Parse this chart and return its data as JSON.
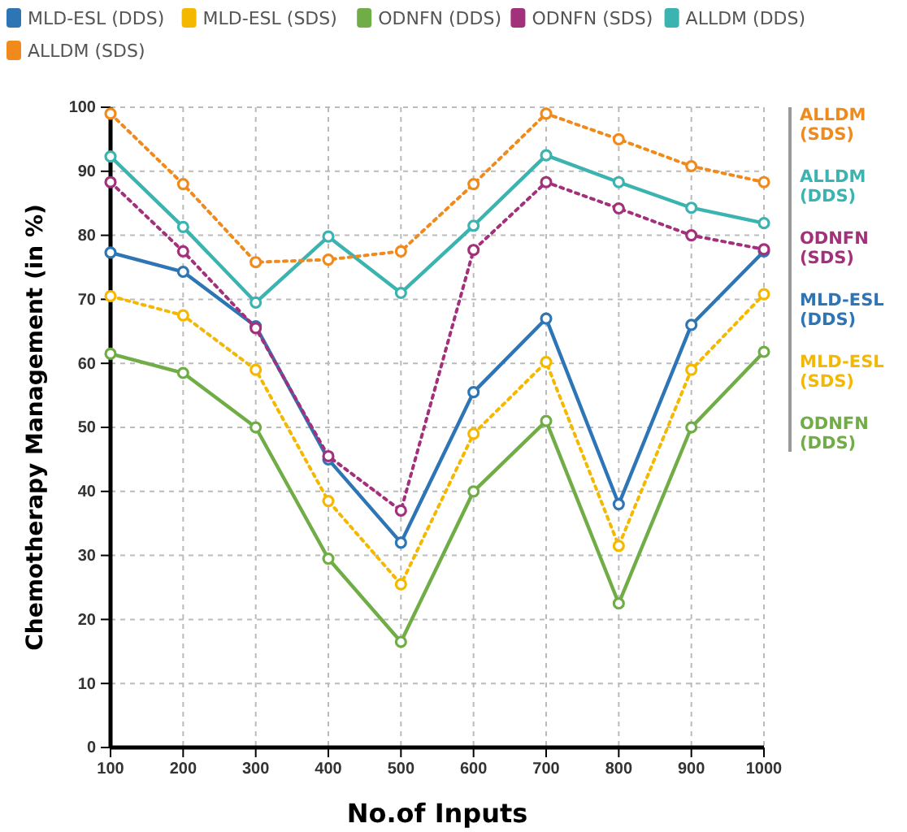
{
  "chart_data": {
    "type": "line",
    "xlabel": "No.of Inputs",
    "ylabel": "Chemotherapy Management (in %)",
    "x": [
      100,
      200,
      300,
      400,
      500,
      600,
      700,
      800,
      900,
      1000
    ],
    "xlim": [
      100,
      1000
    ],
    "xticks": [
      100,
      200,
      300,
      400,
      500,
      600,
      700,
      800,
      900,
      1000
    ],
    "ylim": [
      0,
      100
    ],
    "yticks": [
      0,
      10,
      20,
      30,
      40,
      50,
      60,
      70,
      80,
      90,
      100
    ],
    "grid": true,
    "legend": "top",
    "marker": "circle",
    "series": [
      {
        "name": "MLD-ESL (DDS)",
        "color": "#2e75b6",
        "line_style": "solid",
        "values": [
          77.3,
          74.3,
          65.8,
          45,
          32,
          55.5,
          67,
          38,
          66,
          77.5
        ]
      },
      {
        "name": "MLD-ESL (SDS)",
        "color": "#f5b800",
        "line_style": "dotted",
        "values": [
          70.5,
          67.5,
          59,
          38.5,
          25.5,
          49,
          60.2,
          31.5,
          59,
          70.8
        ]
      },
      {
        "name": "ODNFN (DDS)",
        "color": "#70ad47",
        "line_style": "solid",
        "values": [
          61.5,
          58.5,
          50,
          29.5,
          16.5,
          40,
          51,
          22.5,
          50,
          61.8
        ]
      },
      {
        "name": "ODNFN (SDS)",
        "color": "#a3307a",
        "line_style": "dotted",
        "values": [
          88.3,
          77.5,
          65.5,
          45.5,
          37,
          77.7,
          88.3,
          84.2,
          80,
          77.8
        ]
      },
      {
        "name": "ALLDM (DDS)",
        "color": "#3bb3b0",
        "line_style": "solid",
        "values": [
          92.3,
          81.3,
          69.5,
          79.8,
          71,
          81.5,
          92.5,
          88.3,
          84.3,
          81.9
        ]
      },
      {
        "name": "ALLDM (SDS)",
        "color": "#f08a1c",
        "line_style": "dotted",
        "values": [
          99,
          88,
          75.8,
          76.2,
          77.5,
          88,
          99,
          95,
          90.8,
          88.3
        ]
      }
    ]
  }
}
